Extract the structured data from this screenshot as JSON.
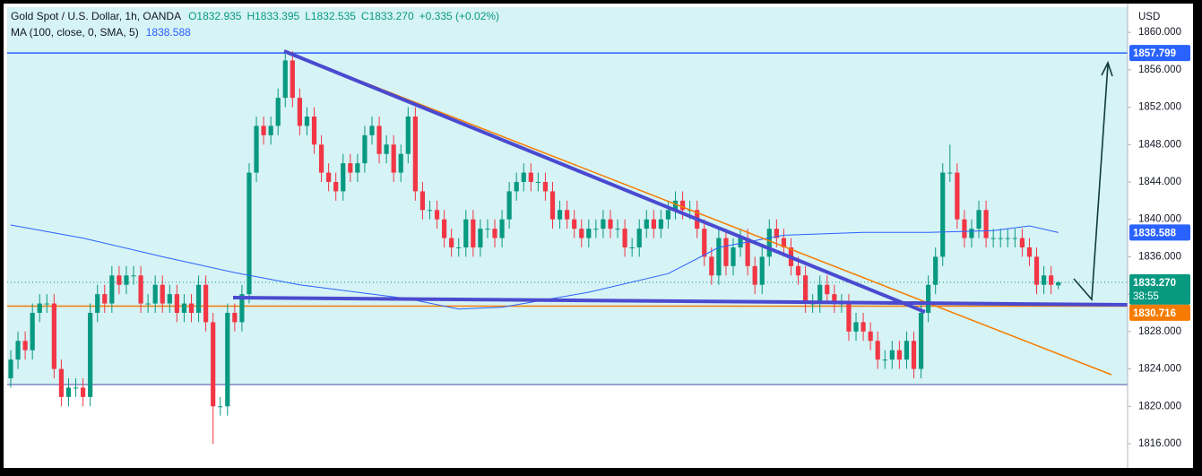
{
  "chart_data": {
    "type": "candlestick",
    "title": "Gold Spot / U.S. Dollar, 1h, OANDA",
    "ohlc_labels": [
      "O1832.935",
      "H1833.395",
      "L1832.535",
      "C1833.270",
      "+0.335 (+0.02%)"
    ],
    "indicator": "MA (100, close, 0, SMA, 5)",
    "y_axis_label": "USD",
    "up_color": "#089981",
    "down_color": "#f23645",
    "series": {
      "open": [
        1823,
        1825,
        1827,
        1826,
        1830,
        1831,
        1831,
        1824,
        1821,
        1822,
        1822,
        1821,
        1830,
        1832,
        1831,
        1834,
        1833,
        1834,
        1834,
        1831,
        1831,
        1833,
        1831,
        1832,
        1830,
        1831,
        1830,
        1833,
        1829,
        1820,
        1820,
        1830,
        1829,
        1832,
        1845,
        1850,
        1849,
        1850,
        1853,
        1857,
        1853,
        1850,
        1851,
        1848,
        1845,
        1844,
        1843,
        1846,
        1845,
        1846,
        1849,
        1850,
        1847,
        1848,
        1845,
        1847,
        1851,
        1843,
        1841,
        1841,
        1840,
        1838,
        1837,
        1837,
        1840,
        1837,
        1839,
        1839,
        1838,
        1840,
        1843,
        1844,
        1845,
        1844,
        1844,
        1843,
        1840,
        1841,
        1840,
        1839,
        1838,
        1839,
        1839,
        1840,
        1839,
        1839,
        1837,
        1837,
        1839,
        1840,
        1839,
        1840,
        1841,
        1842,
        1841,
        1841,
        1839,
        1836,
        1834,
        1838,
        1835,
        1837,
        1838,
        1835,
        1833,
        1836,
        1839,
        1838,
        1837,
        1835,
        1834,
        1831,
        1831,
        1833,
        1832,
        1831,
        1831,
        1828,
        1829,
        1828,
        1827,
        1825,
        1825,
        1826,
        1825,
        1827,
        1824,
        1830,
        1833,
        1836,
        1845,
        1845,
        1840,
        1838,
        1839,
        1841,
        1838,
        1838,
        1838,
        1838,
        1838,
        1837,
        1836,
        1833,
        1834,
        1832.935
      ],
      "high": [
        1826,
        1828,
        1828,
        1831,
        1832,
        1832,
        1832,
        1825,
        1823,
        1823,
        1823,
        1831,
        1833,
        1833,
        1835,
        1835,
        1835,
        1835,
        1835,
        1832,
        1834,
        1834,
        1833,
        1833,
        1832,
        1832,
        1834,
        1834,
        1830,
        1821,
        1831,
        1831,
        1833,
        1846,
        1851,
        1851,
        1851,
        1854,
        1858,
        1858,
        1854,
        1852,
        1852,
        1849,
        1846,
        1845,
        1847,
        1847,
        1847,
        1850,
        1851,
        1851,
        1849,
        1849,
        1848,
        1852,
        1852,
        1844,
        1842,
        1842,
        1841,
        1839,
        1838,
        1841,
        1841,
        1840,
        1840,
        1840,
        1841,
        1844,
        1845,
        1846,
        1846,
        1845,
        1845,
        1844,
        1842,
        1842,
        1841,
        1840,
        1840,
        1840,
        1841,
        1841,
        1840,
        1840,
        1838,
        1840,
        1841,
        1841,
        1841,
        1842,
        1843,
        1843,
        1842,
        1842,
        1840,
        1837,
        1839,
        1839,
        1838,
        1839,
        1839,
        1836,
        1837,
        1840,
        1840,
        1839,
        1838,
        1836,
        1835,
        1832,
        1834,
        1834,
        1833,
        1832,
        1832,
        1830,
        1830,
        1829,
        1828,
        1826,
        1827,
        1827,
        1828,
        1828,
        1831,
        1834,
        1837,
        1846,
        1848,
        1846,
        1841,
        1840,
        1842,
        1842,
        1839,
        1839,
        1839,
        1839,
        1839,
        1838,
        1837,
        1835,
        1835,
        1833.395
      ],
      "low": [
        1822,
        1824,
        1825,
        1825,
        1829,
        1830,
        1823,
        1820,
        1820,
        1821,
        1820,
        1820,
        1829,
        1830,
        1830,
        1832,
        1832,
        1833,
        1830,
        1830,
        1830,
        1830,
        1830,
        1829,
        1829,
        1829,
        1829,
        1828,
        1816,
        1819,
        1819,
        1828,
        1828,
        1831,
        1844,
        1848,
        1848,
        1849,
        1852,
        1852,
        1849,
        1849,
        1847,
        1844,
        1843,
        1842,
        1842,
        1844,
        1844,
        1845,
        1848,
        1846,
        1846,
        1844,
        1844,
        1846,
        1842,
        1840,
        1840,
        1839,
        1837,
        1836,
        1836,
        1836,
        1836,
        1836,
        1838,
        1837,
        1837,
        1839,
        1842,
        1843,
        1843,
        1843,
        1842,
        1839,
        1839,
        1839,
        1838,
        1837,
        1837,
        1838,
        1838,
        1838,
        1838,
        1836,
        1836,
        1836,
        1838,
        1838,
        1838,
        1839,
        1840,
        1840,
        1840,
        1838,
        1835,
        1833,
        1833,
        1834,
        1834,
        1836,
        1834,
        1832,
        1832,
        1835,
        1837,
        1836,
        1834,
        1833,
        1830,
        1830,
        1830,
        1831,
        1830,
        1830,
        1827,
        1827,
        1827,
        1826,
        1824,
        1824,
        1824,
        1824,
        1824,
        1823,
        1823,
        1829,
        1832,
        1835,
        1844,
        1839,
        1837,
        1837,
        1838,
        1837,
        1837,
        1837,
        1837,
        1837,
        1836,
        1835,
        1832,
        1832,
        1832,
        1832.535
      ],
      "close": [
        1825,
        1827,
        1826,
        1830,
        1831,
        1831,
        1824,
        1821,
        1822,
        1822,
        1821,
        1830,
        1832,
        1831,
        1834,
        1833,
        1834,
        1834,
        1831,
        1831,
        1833,
        1831,
        1832,
        1830,
        1831,
        1830,
        1833,
        1829,
        1820,
        1820,
        1830,
        1829,
        1832,
        1845,
        1850,
        1849,
        1850,
        1853,
        1857,
        1853,
        1850,
        1851,
        1848,
        1845,
        1844,
        1843,
        1846,
        1845,
        1846,
        1849,
        1850,
        1847,
        1848,
        1845,
        1847,
        1851,
        1843,
        1841,
        1841,
        1840,
        1838,
        1837,
        1837,
        1840,
        1837,
        1839,
        1839,
        1838,
        1840,
        1843,
        1844,
        1845,
        1844,
        1844,
        1843,
        1840,
        1841,
        1840,
        1839,
        1838,
        1839,
        1839,
        1840,
        1839,
        1839,
        1837,
        1837,
        1839,
        1840,
        1839,
        1840,
        1841,
        1842,
        1841,
        1841,
        1839,
        1836,
        1834,
        1838,
        1835,
        1837,
        1838,
        1835,
        1833,
        1836,
        1839,
        1838,
        1837,
        1835,
        1834,
        1831,
        1831,
        1833,
        1832,
        1831,
        1831,
        1828,
        1829,
        1828,
        1827,
        1825,
        1825,
        1826,
        1825,
        1827,
        1824,
        1830,
        1833,
        1836,
        1845,
        1845,
        1840,
        1838,
        1839,
        1841,
        1838,
        1838,
        1838,
        1838,
        1838,
        1837,
        1836,
        1833,
        1834,
        1833,
        1833.27
      ]
    },
    "ma": {
      "color": "#2962ff",
      "x": [
        0,
        10,
        21,
        31,
        40,
        55,
        62,
        68,
        80,
        91,
        98,
        107,
        118,
        127,
        136,
        141,
        145
      ],
      "values": [
        1839.4,
        1838,
        1836,
        1834.3,
        1833,
        1831.5,
        1830.4,
        1830.6,
        1832.2,
        1834.2,
        1837,
        1838.3,
        1838.6,
        1838.6,
        1838.8,
        1839.3,
        1838.588
      ]
    },
    "price_lines": [
      {
        "value": 1857.799,
        "color": "#2962ff"
      },
      {
        "value": 1830.716,
        "color": "#f57c00"
      }
    ],
    "last_price_label": "1833.270",
    "countdown": "38:55",
    "ylim": [
      1813.6,
      1862.7
    ],
    "yticks": [
      {
        "value": 1816,
        "label": "1816.000"
      },
      {
        "value": 1820,
        "label": "1820.000"
      },
      {
        "value": 1824,
        "label": "1824.000"
      },
      {
        "value": 1828,
        "label": "1828.000"
      },
      {
        "value": 1832,
        "label": "1832.000"
      },
      {
        "value": 1836,
        "label": "1836.000"
      },
      {
        "value": 1840,
        "label": "1840.000"
      },
      {
        "value": 1844,
        "label": "1844.000"
      },
      {
        "value": 1848,
        "label": "1848.000"
      },
      {
        "value": 1852,
        "label": "1852.000"
      },
      {
        "value": 1856,
        "label": "1856.000"
      },
      {
        "value": 1860,
        "label": "1860.000"
      }
    ],
    "grid": false
  }
}
